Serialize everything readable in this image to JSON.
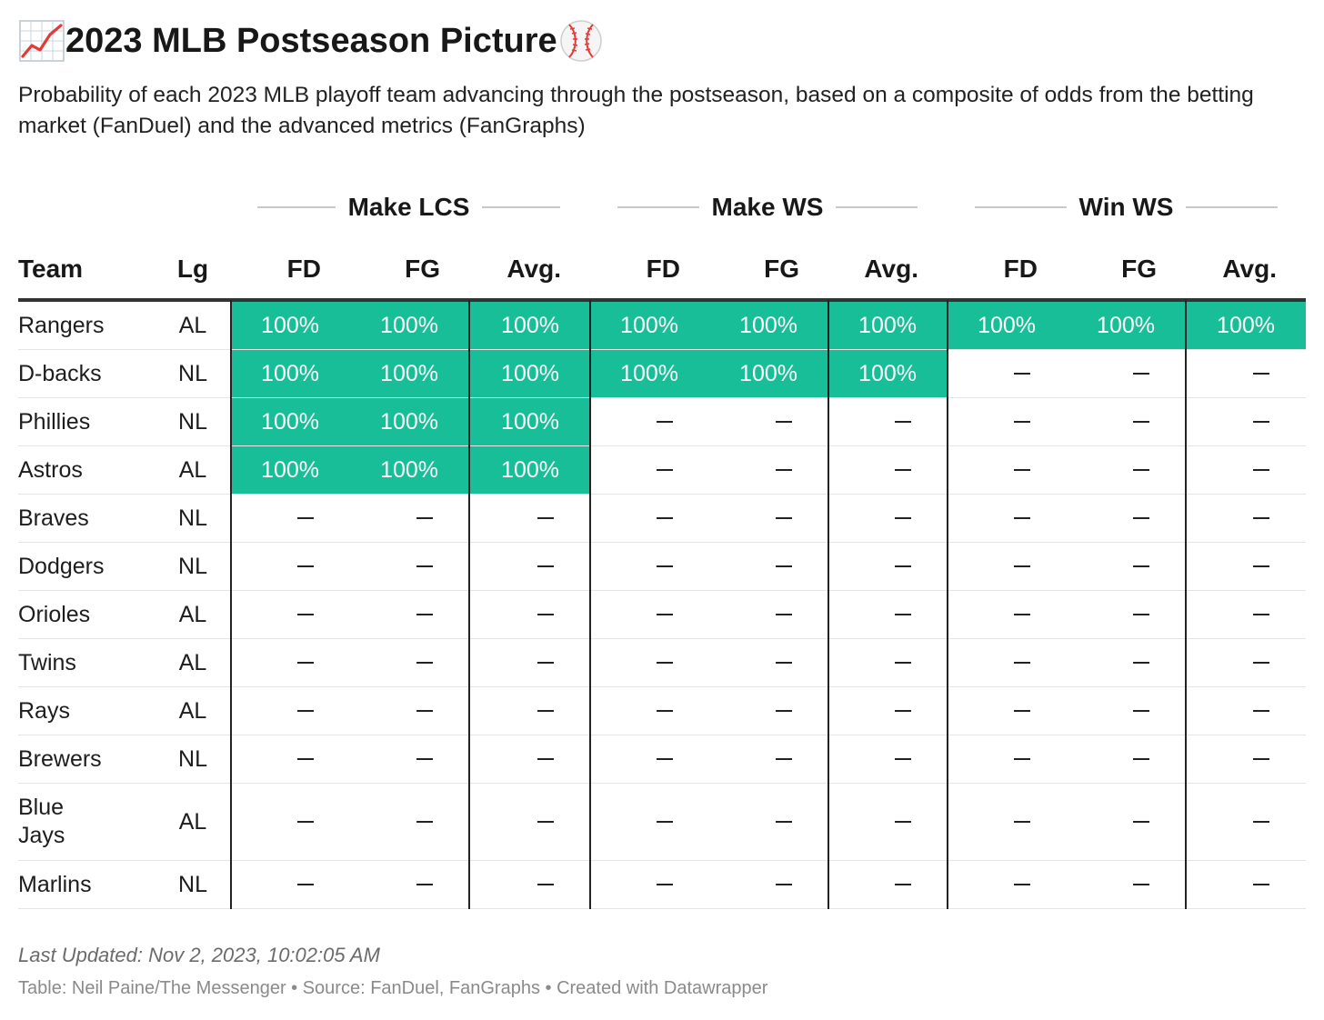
{
  "title": "2023 MLB Postseason Picture",
  "title_icons": {
    "leading": "chart-increasing-icon",
    "trailing": "baseball-icon"
  },
  "subtitle": "Probability of each 2023 MLB playoff team advancing through the postseason, based on a composite of odds from the betting market (FanDuel) and the advanced metrics (FanGraphs)",
  "colors": {
    "highlight": "#18be98",
    "text": "#1d1d1d",
    "rule": "#333333",
    "muted": "#8a8a8a"
  },
  "chart_data": {
    "type": "table",
    "column_groups": [
      "Make LCS",
      "Make WS",
      "Win WS"
    ],
    "columns": [
      "Team",
      "Lg",
      "FD",
      "FG",
      "Avg.",
      "FD",
      "FG",
      "Avg.",
      "FD",
      "FG",
      "Avg."
    ],
    "rows": [
      {
        "team": "Rangers",
        "lg": "AL",
        "values": [
          "100%",
          "100%",
          "100%",
          "100%",
          "100%",
          "100%",
          "100%",
          "100%",
          "100%"
        ]
      },
      {
        "team": "D-backs",
        "lg": "NL",
        "values": [
          "100%",
          "100%",
          "100%",
          "100%",
          "100%",
          "100%",
          "—",
          "—",
          "—"
        ]
      },
      {
        "team": "Phillies",
        "lg": "NL",
        "values": [
          "100%",
          "100%",
          "100%",
          "—",
          "—",
          "—",
          "—",
          "—",
          "—"
        ]
      },
      {
        "team": "Astros",
        "lg": "AL",
        "values": [
          "100%",
          "100%",
          "100%",
          "—",
          "—",
          "—",
          "—",
          "—",
          "—"
        ]
      },
      {
        "team": "Braves",
        "lg": "NL",
        "values": [
          "—",
          "—",
          "—",
          "—",
          "—",
          "—",
          "—",
          "—",
          "—"
        ]
      },
      {
        "team": "Dodgers",
        "lg": "NL",
        "values": [
          "—",
          "—",
          "—",
          "—",
          "—",
          "—",
          "—",
          "—",
          "—"
        ]
      },
      {
        "team": "Orioles",
        "lg": "AL",
        "values": [
          "—",
          "—",
          "—",
          "—",
          "—",
          "—",
          "—",
          "—",
          "—"
        ]
      },
      {
        "team": "Twins",
        "lg": "AL",
        "values": [
          "—",
          "—",
          "—",
          "—",
          "—",
          "—",
          "—",
          "—",
          "—"
        ]
      },
      {
        "team": "Rays",
        "lg": "AL",
        "values": [
          "—",
          "—",
          "—",
          "—",
          "—",
          "—",
          "—",
          "—",
          "—"
        ]
      },
      {
        "team": "Brewers",
        "lg": "NL",
        "values": [
          "—",
          "—",
          "—",
          "—",
          "—",
          "—",
          "—",
          "—",
          "—"
        ]
      },
      {
        "team": "Blue Jays",
        "lg": "AL",
        "values": [
          "—",
          "—",
          "—",
          "—",
          "—",
          "—",
          "—",
          "—",
          "—"
        ]
      },
      {
        "team": "Marlins",
        "lg": "NL",
        "values": [
          "—",
          "—",
          "—",
          "—",
          "—",
          "—",
          "—",
          "—",
          "—"
        ]
      }
    ]
  },
  "footer": {
    "updated": "Last Updated: Nov 2, 2023, 10:02:05 AM",
    "source": "Table: Neil Paine/The Messenger • Source: FanDuel, FanGraphs • Created with Datawrapper"
  }
}
